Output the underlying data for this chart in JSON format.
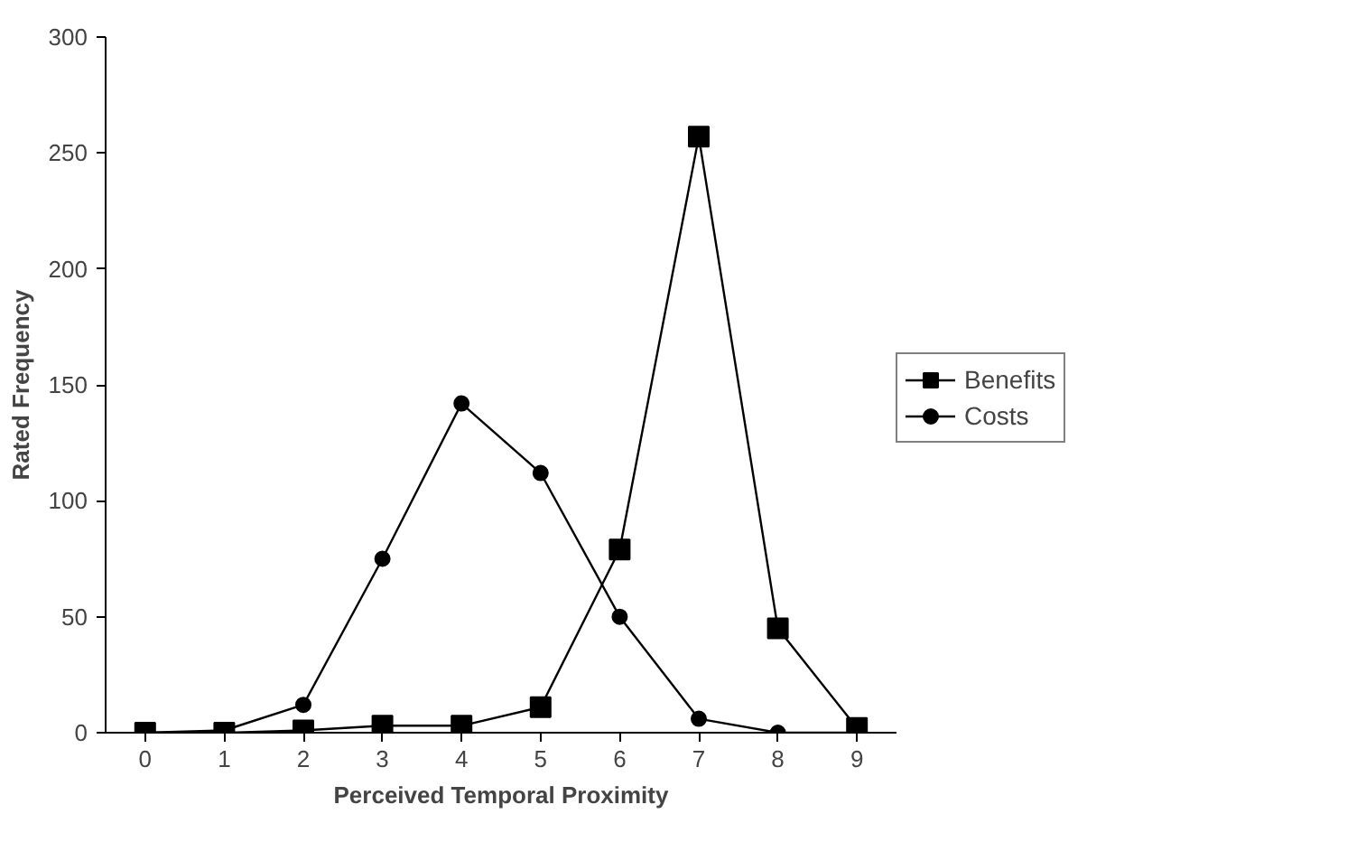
{
  "chart_data": {
    "type": "line",
    "xlabel": "Perceived Temporal Proximity",
    "ylabel": "Rated Frequency",
    "x": [
      0,
      1,
      2,
      3,
      4,
      5,
      6,
      7,
      8,
      9
    ],
    "xlim": [
      -0.5,
      9.5
    ],
    "xticks": [
      0,
      1,
      2,
      3,
      4,
      5,
      6,
      7,
      8,
      9
    ],
    "ylim": [
      0,
      300
    ],
    "yticks": [
      0,
      50,
      100,
      150,
      200,
      250,
      300
    ],
    "grid": false,
    "legend": "right",
    "line_style": "solid",
    "series": [
      {
        "name": "Benefits",
        "color": "#000000",
        "marker": "square",
        "values": [
          0,
          0,
          1,
          3,
          3,
          11,
          79,
          257,
          45,
          2
        ]
      },
      {
        "name": "Costs",
        "color": "#000000",
        "marker": "circle",
        "values": [
          0,
          1,
          12,
          75,
          142,
          112,
          50,
          6,
          0,
          0
        ]
      }
    ]
  }
}
